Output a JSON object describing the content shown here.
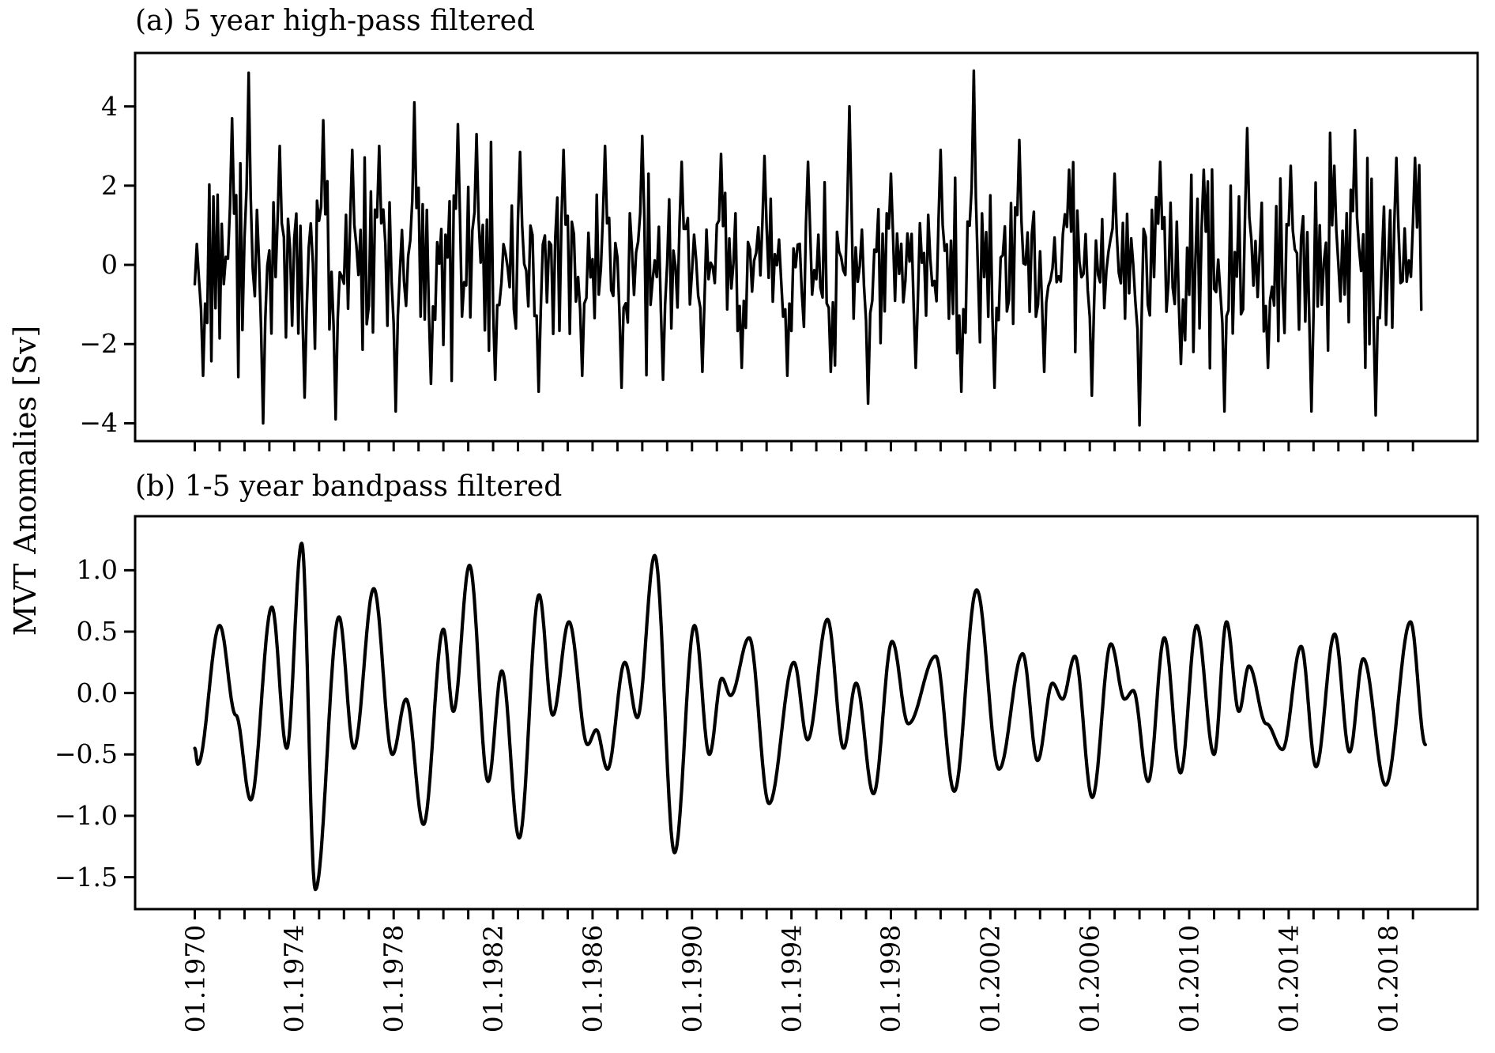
{
  "figure": {
    "background": "#ffffff",
    "line_color": "#000000",
    "text_color": "#000000",
    "ylabel": "MVT Anomalies [Sv]"
  },
  "chart_data": [
    {
      "type": "line",
      "panel": "a",
      "title": "(a) 5 year high-pass filtered",
      "legend": "none",
      "grid": false,
      "line_color": "#000000",
      "line_width": 3.4,
      "xlim": [
        1967.6,
        2021.6
      ],
      "ylim": [
        -4.45,
        5.35
      ],
      "yticks": [
        4,
        2,
        0,
        -2,
        -4
      ],
      "ytick_labels": [
        "4",
        "2",
        "0",
        "−2",
        "−4"
      ],
      "xtick_minor_first_year": 1970,
      "xtick_minor_last_year": 2019,
      "x_start": 1970.0,
      "x_end": 2019.33,
      "sampling": "monthly",
      "series_spec": {
        "description": "high-frequency residual (periods < 5 yr) of MVT anomalies, monthly values; synthesized noise matching the plotted envelope with observed extremes pinned",
        "seed": 77,
        "std": 1.25,
        "clip": [
          -4.05,
          4.92
        ],
        "pins": [
          [
            1970.3,
            -2.8
          ],
          [
            1971.5,
            3.7
          ],
          [
            1972.2,
            4.85
          ],
          [
            1972.75,
            -4.0
          ],
          [
            1973.4,
            3.0
          ],
          [
            1974.4,
            -3.35
          ],
          [
            1975.15,
            3.65
          ],
          [
            1975.7,
            -3.9
          ],
          [
            1976.3,
            2.9
          ],
          [
            1977.4,
            3.0
          ],
          [
            1978.1,
            -3.7
          ],
          [
            1978.85,
            4.1
          ],
          [
            1979.5,
            -3.0
          ],
          [
            1980.6,
            3.55
          ],
          [
            1981.3,
            3.3
          ],
          [
            1982.1,
            -2.9
          ],
          [
            1983.1,
            2.85
          ],
          [
            1983.8,
            -3.2
          ],
          [
            1984.8,
            2.9
          ],
          [
            1985.6,
            -2.8
          ],
          [
            1986.5,
            3.0
          ],
          [
            1987.2,
            -3.1
          ],
          [
            1988.0,
            3.25
          ],
          [
            1988.8,
            -2.9
          ],
          [
            1989.6,
            2.6
          ],
          [
            1990.4,
            -2.7
          ],
          [
            1991.2,
            2.8
          ],
          [
            1992.0,
            -2.6
          ],
          [
            1992.9,
            2.75
          ],
          [
            1993.8,
            -2.8
          ],
          [
            1994.7,
            2.6
          ],
          [
            1995.6,
            -2.7
          ],
          [
            1996.3,
            4.0
          ],
          [
            1997.1,
            -3.5
          ],
          [
            1998.0,
            2.3
          ],
          [
            1999.0,
            -2.6
          ],
          [
            2000.0,
            2.9
          ],
          [
            2000.8,
            -3.2
          ],
          [
            2001.3,
            4.9
          ],
          [
            2002.2,
            -3.1
          ],
          [
            2003.2,
            3.15
          ],
          [
            2004.2,
            -2.7
          ],
          [
            2005.2,
            2.4
          ],
          [
            2006.1,
            -3.3
          ],
          [
            2007.0,
            2.3
          ],
          [
            2008.0,
            -4.05
          ],
          [
            2008.8,
            2.6
          ],
          [
            2009.7,
            -2.5
          ],
          [
            2010.6,
            2.4
          ],
          [
            2011.4,
            -3.7
          ],
          [
            2012.3,
            3.45
          ],
          [
            2013.2,
            -2.6
          ],
          [
            2014.1,
            2.5
          ],
          [
            2014.9,
            -3.7
          ],
          [
            2015.8,
            2.5
          ],
          [
            2016.7,
            3.4
          ],
          [
            2017.5,
            -3.8
          ],
          [
            2018.3,
            2.7
          ],
          [
            2019.1,
            2.7
          ]
        ]
      }
    },
    {
      "type": "line",
      "panel": "b",
      "title": "(b) 1-5 year bandpass filtered",
      "legend": "none",
      "grid": false,
      "line_color": "#000000",
      "line_width": 4.2,
      "xlim": [
        1967.6,
        2021.6
      ],
      "ylim": [
        -1.76,
        1.44
      ],
      "yticks": [
        1.0,
        0.5,
        0.0,
        -0.5,
        -1.0,
        -1.5
      ],
      "ytick_labels": [
        "1.0",
        "0.5",
        "0.0",
        "−0.5",
        "−1.0",
        "−1.5"
      ],
      "xtick_minor_first_year": 1970,
      "xtick_minor_last_year": 2019,
      "x_start": 1970.0,
      "x_end": 2019.5,
      "keypoints": [
        [
          1970.0,
          -0.45
        ],
        [
          1970.12,
          -0.58
        ],
        [
          1971.0,
          0.55
        ],
        [
          1971.65,
          -0.18
        ],
        [
          1972.25,
          -0.87
        ],
        [
          1973.1,
          0.7
        ],
        [
          1973.7,
          -0.45
        ],
        [
          1974.3,
          1.22
        ],
        [
          1974.85,
          -1.6
        ],
        [
          1975.8,
          0.62
        ],
        [
          1976.4,
          -0.45
        ],
        [
          1977.2,
          0.85
        ],
        [
          1977.95,
          -0.5
        ],
        [
          1978.5,
          -0.05
        ],
        [
          1979.2,
          -1.07
        ],
        [
          1980.0,
          0.52
        ],
        [
          1980.4,
          -0.15
        ],
        [
          1981.05,
          1.04
        ],
        [
          1981.8,
          -0.72
        ],
        [
          1982.35,
          0.18
        ],
        [
          1983.05,
          -1.18
        ],
        [
          1983.85,
          0.8
        ],
        [
          1984.4,
          -0.18
        ],
        [
          1985.05,
          0.58
        ],
        [
          1985.8,
          -0.42
        ],
        [
          1986.15,
          -0.3
        ],
        [
          1986.6,
          -0.62
        ],
        [
          1987.3,
          0.25
        ],
        [
          1987.8,
          -0.2
        ],
        [
          1988.5,
          1.12
        ],
        [
          1989.3,
          -1.3
        ],
        [
          1990.1,
          0.55
        ],
        [
          1990.7,
          -0.5
        ],
        [
          1991.2,
          0.12
        ],
        [
          1991.55,
          -0.02
        ],
        [
          1992.3,
          0.45
        ],
        [
          1993.1,
          -0.9
        ],
        [
          1994.1,
          0.25
        ],
        [
          1994.65,
          -0.38
        ],
        [
          1995.45,
          0.6
        ],
        [
          1996.1,
          -0.45
        ],
        [
          1996.6,
          0.08
        ],
        [
          1997.3,
          -0.82
        ],
        [
          1998.05,
          0.42
        ],
        [
          1998.7,
          -0.25
        ],
        [
          1999.8,
          0.3
        ],
        [
          2000.55,
          -0.8
        ],
        [
          2001.45,
          0.84
        ],
        [
          2002.35,
          -0.62
        ],
        [
          2003.3,
          0.32
        ],
        [
          2003.9,
          -0.55
        ],
        [
          2004.5,
          0.08
        ],
        [
          2004.9,
          -0.05
        ],
        [
          2005.4,
          0.3
        ],
        [
          2006.1,
          -0.85
        ],
        [
          2006.85,
          0.4
        ],
        [
          2007.4,
          -0.05
        ],
        [
          2007.75,
          0.02
        ],
        [
          2008.35,
          -0.72
        ],
        [
          2009.0,
          0.45
        ],
        [
          2009.65,
          -0.65
        ],
        [
          2010.3,
          0.55
        ],
        [
          2011.0,
          -0.5
        ],
        [
          2011.5,
          0.58
        ],
        [
          2012.0,
          -0.15
        ],
        [
          2012.4,
          0.22
        ],
        [
          2013.1,
          -0.25
        ],
        [
          2013.75,
          -0.46
        ],
        [
          2014.5,
          0.38
        ],
        [
          2015.1,
          -0.6
        ],
        [
          2015.85,
          0.48
        ],
        [
          2016.45,
          -0.48
        ],
        [
          2017.0,
          0.28
        ],
        [
          2017.9,
          -0.75
        ],
        [
          2018.9,
          0.58
        ],
        [
          2019.5,
          -0.42
        ]
      ]
    }
  ],
  "x_axis": {
    "tick_label_years": [
      1970,
      1974,
      1978,
      1982,
      1986,
      1990,
      1994,
      1998,
      2002,
      2006,
      2010,
      2014,
      2018
    ],
    "tick_labels": [
      "01.1970",
      "01.1974",
      "01.1978",
      "01.1982",
      "01.1986",
      "01.1990",
      "01.1994",
      "01.1998",
      "01.2002",
      "01.2006",
      "01.2010",
      "01.2014",
      "01.2018"
    ],
    "label_rotation_deg": 90
  }
}
